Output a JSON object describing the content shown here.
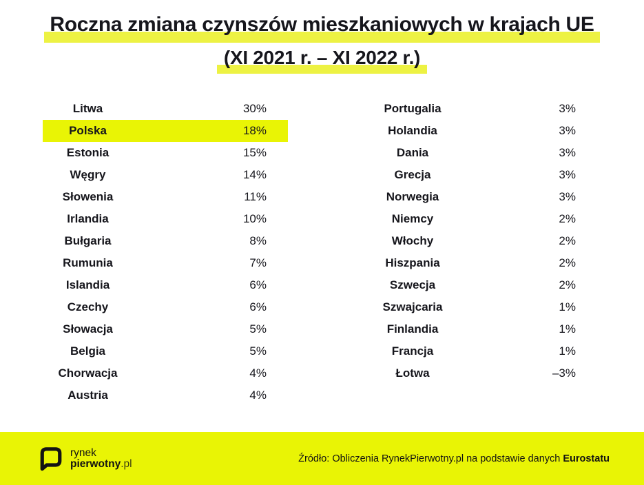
{
  "colors": {
    "accent_yellow": "#e9f405",
    "title_highlight": "#edf243",
    "text_dark": "#16161c",
    "background": "#ffffff"
  },
  "title": {
    "line1": "Roczna zmiana czynszów mieszkaniowych w krajach UE",
    "line2": "(XI 2021 r. – XI 2022 r.)"
  },
  "footer": {
    "logo_line1": "rynek",
    "logo_line2_bold": "pierwotny",
    "logo_line2_suffix": ".pl",
    "source_prefix": "Źródło: Obliczenia RynekPierwotny.pl na podstawie danych",
    "source_bold": "Eurostatu"
  },
  "chart_data": {
    "type": "table",
    "title": "Roczna zmiana czynszów mieszkaniowych w krajach UE (XI 2021 r. – XI 2022 r.)",
    "unit": "%",
    "highlighted_row": "Polska",
    "legend_position": "none",
    "columns": [
      {
        "rows": [
          {
            "country": "Litwa",
            "value_pct": 30,
            "label": "30%",
            "highlight": false
          },
          {
            "country": "Polska",
            "value_pct": 18,
            "label": "18%",
            "highlight": true
          },
          {
            "country": "Estonia",
            "value_pct": 15,
            "label": "15%",
            "highlight": false
          },
          {
            "country": "Węgry",
            "value_pct": 14,
            "label": "14%",
            "highlight": false
          },
          {
            "country": "Słowenia",
            "value_pct": 11,
            "label": "11%",
            "highlight": false
          },
          {
            "country": "Irlandia",
            "value_pct": 10,
            "label": "10%",
            "highlight": false
          },
          {
            "country": "Bułgaria",
            "value_pct": 8,
            "label": "8%",
            "highlight": false
          },
          {
            "country": "Rumunia",
            "value_pct": 7,
            "label": "7%",
            "highlight": false
          },
          {
            "country": "Islandia",
            "value_pct": 6,
            "label": "6%",
            "highlight": false
          },
          {
            "country": "Czechy",
            "value_pct": 6,
            "label": "6%",
            "highlight": false
          },
          {
            "country": "Słowacja",
            "value_pct": 5,
            "label": "5%",
            "highlight": false
          },
          {
            "country": "Belgia",
            "value_pct": 5,
            "label": "5%",
            "highlight": false
          },
          {
            "country": "Chorwacja",
            "value_pct": 4,
            "label": "4%",
            "highlight": false
          },
          {
            "country": "Austria",
            "value_pct": 4,
            "label": "4%",
            "highlight": false
          }
        ]
      },
      {
        "rows": [
          {
            "country": "Portugalia",
            "value_pct": 3,
            "label": "3%",
            "highlight": false
          },
          {
            "country": "Holandia",
            "value_pct": 3,
            "label": "3%",
            "highlight": false
          },
          {
            "country": "Dania",
            "value_pct": 3,
            "label": "3%",
            "highlight": false
          },
          {
            "country": "Grecja",
            "value_pct": 3,
            "label": "3%",
            "highlight": false
          },
          {
            "country": "Norwegia",
            "value_pct": 3,
            "label": "3%",
            "highlight": false
          },
          {
            "country": "Niemcy",
            "value_pct": 2,
            "label": "2%",
            "highlight": false
          },
          {
            "country": "Włochy",
            "value_pct": 2,
            "label": "2%",
            "highlight": false
          },
          {
            "country": "Hiszpania",
            "value_pct": 2,
            "label": "2%",
            "highlight": false
          },
          {
            "country": "Szwecja",
            "value_pct": 2,
            "label": "2%",
            "highlight": false
          },
          {
            "country": "Szwajcaria",
            "value_pct": 1,
            "label": "1%",
            "highlight": false
          },
          {
            "country": "Finlandia",
            "value_pct": 1,
            "label": "1%",
            "highlight": false
          },
          {
            "country": "Francja",
            "value_pct": 1,
            "label": "1%",
            "highlight": false
          },
          {
            "country": "Łotwa",
            "value_pct": -3,
            "label": "–3%",
            "highlight": false
          }
        ]
      }
    ]
  }
}
